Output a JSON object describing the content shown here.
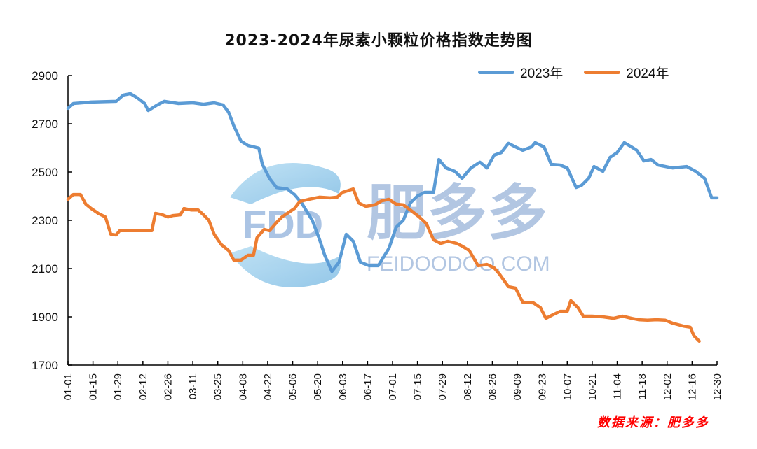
{
  "title": "2023-2024年尿素小颗粒价格指数走势图",
  "legend": [
    {
      "label": "2023年",
      "color": "#5b9bd5"
    },
    {
      "label": "2024年",
      "color": "#ed7d31"
    }
  ],
  "source": "数据来源：肥多多",
  "watermark": {
    "logo_text": "FDD",
    "brand_cn": "肥多多",
    "brand_url": "FEIDOODOO.COM"
  },
  "chart_data": {
    "type": "line",
    "title": "2023-2024年尿素小颗粒价格指数走势图",
    "xlabel": "",
    "ylabel": "",
    "ylim": [
      1700,
      2900
    ],
    "yticks": [
      1700,
      1900,
      2100,
      2300,
      2500,
      2700,
      2900
    ],
    "xticks": [
      "01-01",
      "01-15",
      "01-29",
      "02-12",
      "02-26",
      "03-11",
      "03-25",
      "04-08",
      "04-22",
      "05-06",
      "05-20",
      "06-03",
      "06-17",
      "07-01",
      "07-15",
      "07-29",
      "08-12",
      "08-26",
      "09-09",
      "09-23",
      "10-07",
      "10-21",
      "11-04",
      "11-18",
      "12-02",
      "12-16",
      "12-30"
    ],
    "xrange_days": [
      0,
      364
    ],
    "grid": false,
    "legend_position": "top-right",
    "series": [
      {
        "name": "2023年",
        "color": "#5b9bd5",
        "points": [
          [
            0,
            2764
          ],
          [
            3,
            2784
          ],
          [
            13,
            2790
          ],
          [
            27,
            2793
          ],
          [
            31,
            2819
          ],
          [
            35,
            2825
          ],
          [
            39,
            2807
          ],
          [
            43,
            2784
          ],
          [
            45,
            2755
          ],
          [
            50,
            2778
          ],
          [
            54,
            2793
          ],
          [
            62,
            2784
          ],
          [
            70,
            2787
          ],
          [
            76,
            2781
          ],
          [
            82,
            2787
          ],
          [
            87,
            2778
          ],
          [
            90,
            2749
          ],
          [
            93,
            2691
          ],
          [
            97,
            2628
          ],
          [
            101,
            2610
          ],
          [
            107,
            2599
          ],
          [
            109,
            2532
          ],
          [
            113,
            2474
          ],
          [
            117,
            2436
          ],
          [
            123,
            2430
          ],
          [
            127,
            2407
          ],
          [
            131,
            2372
          ],
          [
            137,
            2300
          ],
          [
            141,
            2222
          ],
          [
            144,
            2155
          ],
          [
            148,
            2088
          ],
          [
            152,
            2126
          ],
          [
            156,
            2242
          ],
          [
            160,
            2213
          ],
          [
            164,
            2126
          ],
          [
            169,
            2112
          ],
          [
            174,
            2112
          ],
          [
            180,
            2184
          ],
          [
            184,
            2271
          ],
          [
            188,
            2300
          ],
          [
            192,
            2372
          ],
          [
            196,
            2401
          ],
          [
            200,
            2416
          ],
          [
            205,
            2416
          ],
          [
            208,
            2552
          ],
          [
            212,
            2517
          ],
          [
            217,
            2503
          ],
          [
            221,
            2474
          ],
          [
            226,
            2517
          ],
          [
            231,
            2541
          ],
          [
            235,
            2517
          ],
          [
            239,
            2570
          ],
          [
            243,
            2581
          ],
          [
            247,
            2619
          ],
          [
            251,
            2604
          ],
          [
            255,
            2590
          ],
          [
            260,
            2604
          ],
          [
            262,
            2622
          ],
          [
            267,
            2604
          ],
          [
            271,
            2532
          ],
          [
            276,
            2529
          ],
          [
            280,
            2517
          ],
          [
            285,
            2436
          ],
          [
            288,
            2445
          ],
          [
            292,
            2474
          ],
          [
            295,
            2523
          ],
          [
            300,
            2503
          ],
          [
            304,
            2561
          ],
          [
            308,
            2581
          ],
          [
            312,
            2622
          ],
          [
            316,
            2604
          ],
          [
            319,
            2590
          ],
          [
            323,
            2546
          ],
          [
            327,
            2552
          ],
          [
            331,
            2529
          ],
          [
            339,
            2517
          ],
          [
            347,
            2523
          ],
          [
            352,
            2503
          ],
          [
            357,
            2474
          ],
          [
            361,
            2393
          ],
          [
            364,
            2393
          ]
        ]
      },
      {
        "name": "2024年",
        "color": "#ed7d31",
        "points": [
          [
            0,
            2387
          ],
          [
            3,
            2407
          ],
          [
            7,
            2407
          ],
          [
            10,
            2367
          ],
          [
            13,
            2349
          ],
          [
            17,
            2329
          ],
          [
            21,
            2314
          ],
          [
            24,
            2242
          ],
          [
            27,
            2239
          ],
          [
            29,
            2257
          ],
          [
            33,
            2257
          ],
          [
            40,
            2257
          ],
          [
            47,
            2257
          ],
          [
            49,
            2329
          ],
          [
            53,
            2323
          ],
          [
            56,
            2314
          ],
          [
            59,
            2320
          ],
          [
            63,
            2323
          ],
          [
            65,
            2349
          ],
          [
            69,
            2343
          ],
          [
            73,
            2343
          ],
          [
            76,
            2323
          ],
          [
            79,
            2300
          ],
          [
            82,
            2242
          ],
          [
            86,
            2199
          ],
          [
            90,
            2175
          ],
          [
            93,
            2135
          ],
          [
            97,
            2135
          ],
          [
            101,
            2155
          ],
          [
            104,
            2155
          ],
          [
            106,
            2228
          ],
          [
            110,
            2262
          ],
          [
            113,
            2257
          ],
          [
            117,
            2291
          ],
          [
            120,
            2314
          ],
          [
            123,
            2329
          ],
          [
            127,
            2349
          ],
          [
            130,
            2378
          ],
          [
            135,
            2387
          ],
          [
            141,
            2396
          ],
          [
            147,
            2393
          ],
          [
            151,
            2396
          ],
          [
            154,
            2416
          ],
          [
            160,
            2430
          ],
          [
            163,
            2372
          ],
          [
            167,
            2358
          ],
          [
            172,
            2364
          ],
          [
            176,
            2381
          ],
          [
            180,
            2387
          ],
          [
            184,
            2367
          ],
          [
            188,
            2364
          ],
          [
            192,
            2343
          ],
          [
            197,
            2314
          ],
          [
            201,
            2286
          ],
          [
            205,
            2219
          ],
          [
            209,
            2204
          ],
          [
            213,
            2213
          ],
          [
            218,
            2204
          ],
          [
            221,
            2193
          ],
          [
            225,
            2175
          ],
          [
            230,
            2112
          ],
          [
            235,
            2117
          ],
          [
            239,
            2103
          ],
          [
            242,
            2077
          ],
          [
            247,
            2025
          ],
          [
            251,
            2019
          ],
          [
            255,
            1961
          ],
          [
            261,
            1958
          ],
          [
            265,
            1938
          ],
          [
            268,
            1894
          ],
          [
            272,
            1909
          ],
          [
            276,
            1923
          ],
          [
            280,
            1923
          ],
          [
            282,
            1967
          ],
          [
            286,
            1938
          ],
          [
            289,
            1903
          ],
          [
            294,
            1903
          ],
          [
            300,
            1900
          ],
          [
            306,
            1894
          ],
          [
            311,
            1903
          ],
          [
            316,
            1894
          ],
          [
            320,
            1888
          ],
          [
            325,
            1886
          ],
          [
            330,
            1888
          ],
          [
            335,
            1886
          ],
          [
            339,
            1874
          ],
          [
            345,
            1862
          ],
          [
            349,
            1857
          ],
          [
            351,
            1822
          ],
          [
            354,
            1799
          ]
        ]
      }
    ]
  }
}
